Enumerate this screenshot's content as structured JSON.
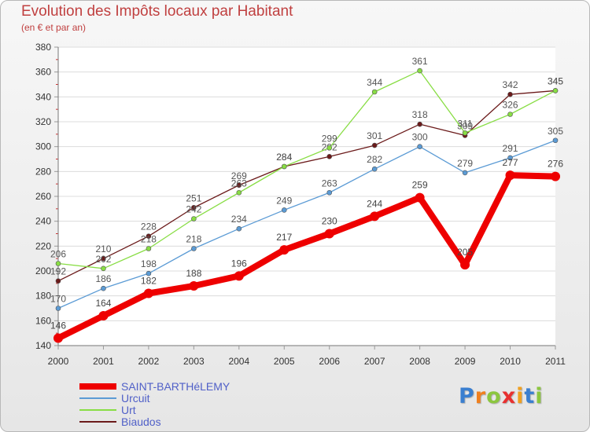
{
  "header": {
    "title": "Evolution des Impôts locaux par Habitant",
    "subtitle": "(en € et par an)"
  },
  "logo": {
    "text": "Proxiti",
    "letters": [
      "P",
      "r",
      "o",
      "x",
      "i",
      "t",
      "i"
    ]
  },
  "chart_data": {
    "type": "line",
    "title": "Evolution des Impôts locaux par Habitant",
    "subtitle": "(en € et par an)",
    "xlabel": "",
    "ylabel": "",
    "ylim": [
      140,
      380
    ],
    "yticks": [
      140,
      160,
      180,
      200,
      220,
      240,
      260,
      280,
      300,
      320,
      340,
      360,
      380
    ],
    "grid": "horizontal",
    "legend_position": "bottom-left",
    "categories": [
      "2000",
      "2001",
      "2002",
      "2003",
      "2004",
      "2005",
      "2006",
      "2007",
      "2008",
      "2009",
      "2010",
      "2011"
    ],
    "series": [
      {
        "name": "Biaudos",
        "color": "#6b1a1a",
        "values": [
          192,
          210,
          228,
          251,
          269,
          284,
          292,
          301,
          318,
          309,
          342,
          345
        ]
      },
      {
        "name": "Urt",
        "color": "#88dd44",
        "values": [
          206,
          202,
          218,
          242,
          263,
          284,
          299,
          344,
          361,
          311,
          326,
          345
        ]
      },
      {
        "name": "Urcuit",
        "color": "#5b9bd5",
        "values": [
          170,
          186,
          198,
          218,
          234,
          249,
          263,
          282,
          300,
          279,
          291,
          305
        ]
      },
      {
        "name": "SAINT-BARTHéLEMY",
        "color": "#ee0000",
        "values": [
          146,
          164,
          182,
          188,
          196,
          217,
          230,
          244,
          259,
          205,
          277,
          276
        ]
      }
    ]
  }
}
